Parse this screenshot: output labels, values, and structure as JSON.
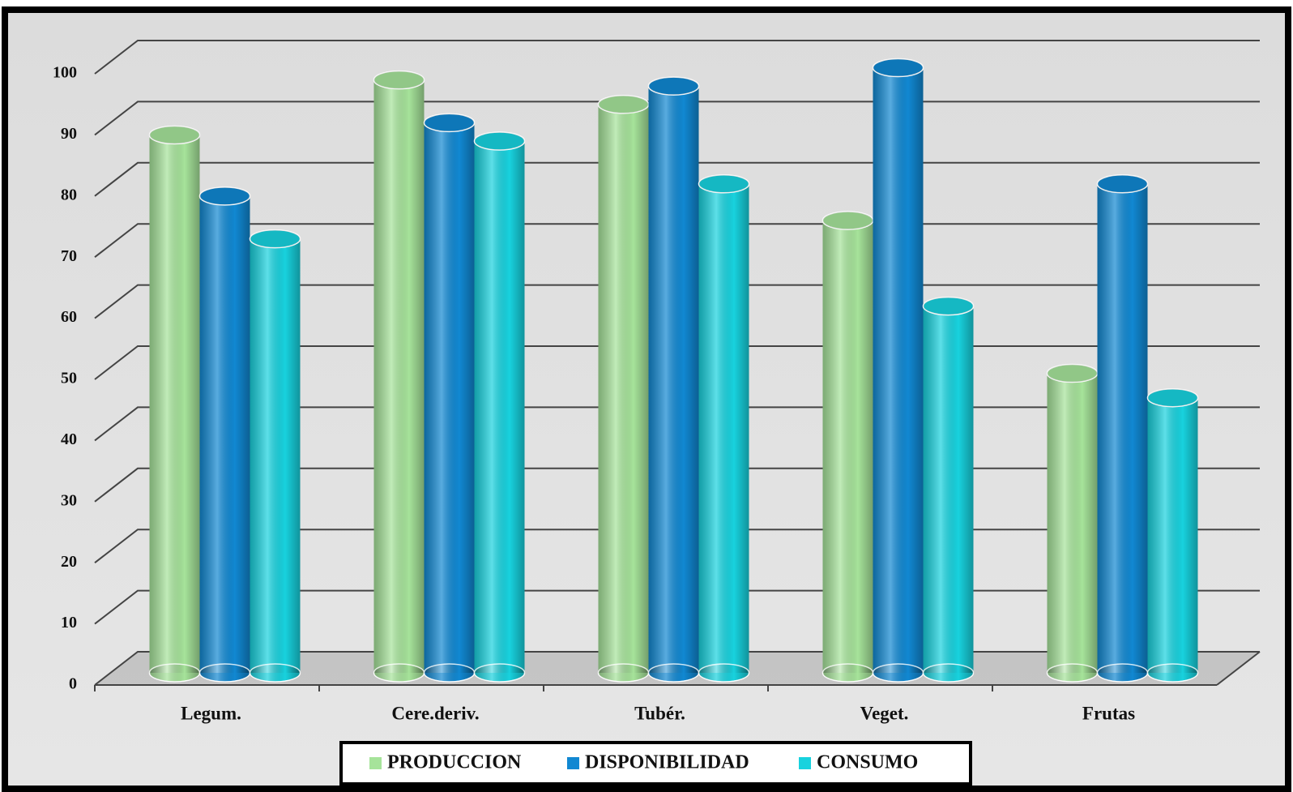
{
  "chart_data": {
    "type": "bar3d",
    "categories": [
      "Legum.",
      "Cere.deriv.",
      "Tubér.",
      "Veget.",
      "Frutas"
    ],
    "series": [
      {
        "name": "PRODUCCION",
        "color": "#a6e39a",
        "values": [
          88,
          97,
          93,
          74,
          49
        ]
      },
      {
        "name": "DISPONIBILIDAD",
        "color": "#1188d2",
        "values": [
          78,
          90,
          96,
          99,
          80
        ]
      },
      {
        "name": "CONSUMO",
        "color": "#18d2de",
        "values": [
          71,
          87,
          80,
          60,
          45
        ]
      }
    ],
    "ylim": [
      0,
      100
    ],
    "yticks": [
      0,
      10,
      20,
      30,
      40,
      50,
      60,
      70,
      80,
      90,
      100
    ],
    "grid": true,
    "legend": "bottom"
  }
}
